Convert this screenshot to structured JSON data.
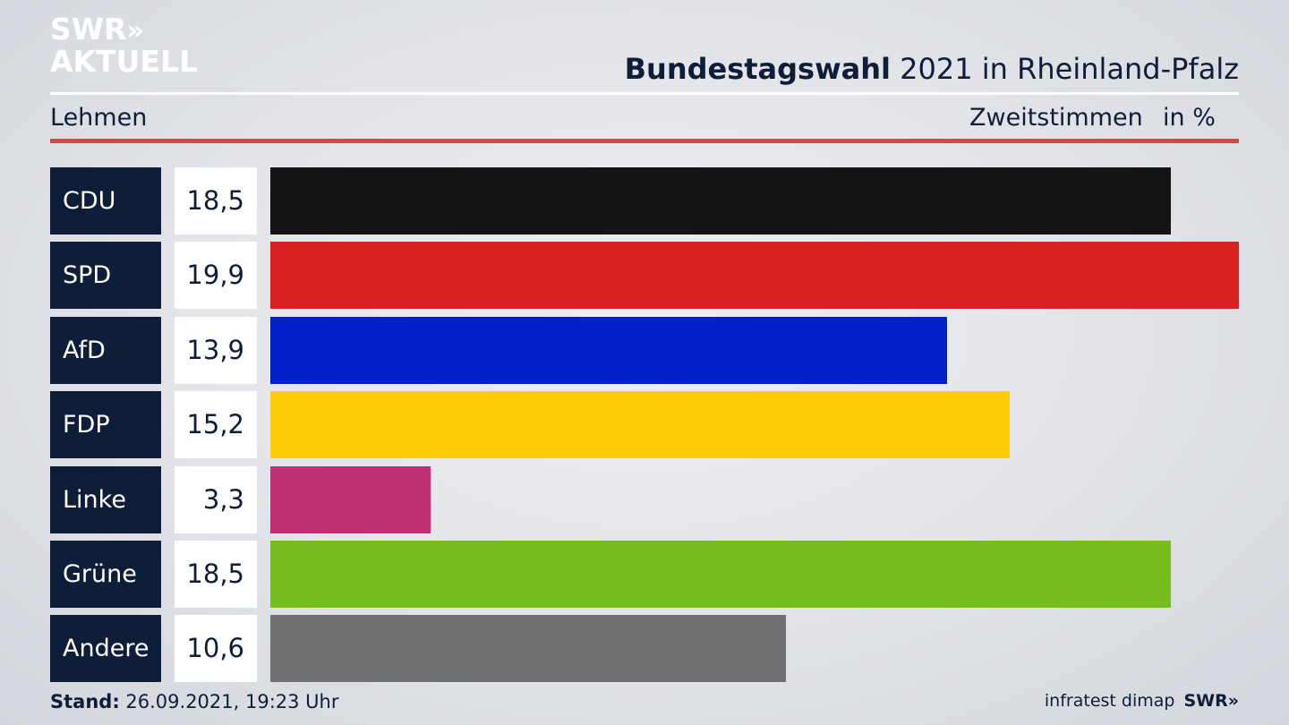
{
  "logo": {
    "line1": "SWR",
    "chevrons": "»",
    "line2": "AKTUELL"
  },
  "header": {
    "title_bold": "Bundestagswahl",
    "title_rest": " 2021 in Rheinland-Pfalz",
    "region": "Lehmen",
    "vote_type": "Zweitstimmen",
    "unit": "in %"
  },
  "footer": {
    "stand_label": "Stand:",
    "stand_value": " 26.09.2021, 19:23 Uhr",
    "source": "infratest dimap",
    "brand": "SWR»"
  },
  "chart_data": {
    "type": "bar",
    "orientation": "horizontal",
    "categories": [
      "CDU",
      "SPD",
      "AfD",
      "FDP",
      "Linke",
      "Grüne",
      "Andere"
    ],
    "values": [
      18.5,
      19.9,
      13.9,
      15.2,
      3.3,
      18.5,
      10.6
    ],
    "value_labels": [
      "18,5",
      "19,9",
      "13,9",
      "15,2",
      "3,3",
      "18,5",
      "10,6"
    ],
    "colors": [
      "#141414",
      "#d72020",
      "#0020c8",
      "#ffcc0a",
      "#be2f73",
      "#78bd1e",
      "#717173"
    ],
    "xlim": [
      0,
      19.9
    ],
    "grid": false,
    "legend": "none"
  }
}
